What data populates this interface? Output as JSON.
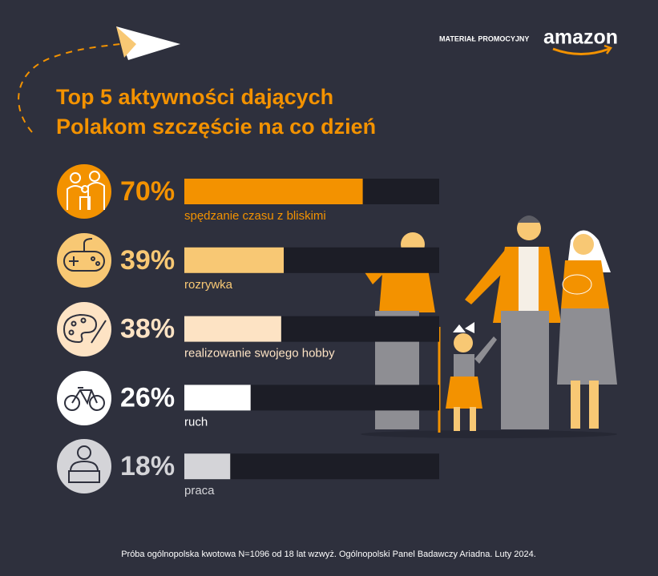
{
  "header": {
    "note": "MATERIAŁ PROMOCYJNY",
    "brand": "amazon"
  },
  "chart_data": {
    "type": "bar",
    "orientation": "horizontal",
    "title_lines": [
      "Top 5 aktywności dających",
      "Polakom szczęście na co dzień"
    ],
    "categories": [
      "spędzanie czasu z bliskimi",
      "rozrywka",
      "realizowanie swojego hobby",
      "ruch",
      "praca"
    ],
    "values": [
      70,
      39,
      38,
      26,
      18
    ],
    "value_labels": [
      "70%",
      "39%",
      "38%",
      "26%",
      "18%"
    ],
    "colors": [
      "#f39200",
      "#f8c874",
      "#fde3c4",
      "#ffffff",
      "#d4d4d8"
    ],
    "xlim": [
      0,
      100
    ]
  },
  "footer": {
    "source": "Próba ogólnopolska kwotowa N=1096 od 18 lat wzwyż. Ogólnopolski Panel Badawczy Ariadna. Luty 2024."
  }
}
